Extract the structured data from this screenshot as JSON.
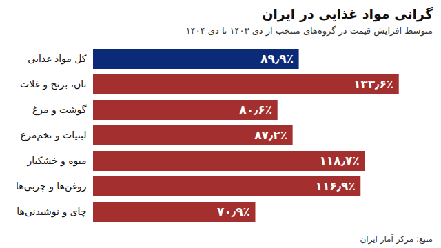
{
  "chart_data": {
    "type": "bar",
    "title": "گرانی مواد غذایی در ایران",
    "subtitle": "متوسط افزایش قیمت در گروه‌های منتخب از دی ۱۴۰۳ تا دی ۱۴۰۴",
    "source": "منبع: مرکز آمار ایران",
    "orientation": "horizontal",
    "categories": [
      "کل مواد غذایی",
      "نان، برنج و غلات",
      "گوشت و مرغ",
      "لبنیات و تخم‌مرغ",
      "میوه و خشکبار",
      "روغن‌ها و چربی‌ها",
      "چای و نوشیدنی‌ها"
    ],
    "values": [
      89.9,
      133.6,
      80.6,
      87.2,
      118.7,
      116.9,
      70.9
    ],
    "value_labels": [
      "۸۹٫۹٪",
      "۱۳۳٫۶٪",
      "۸۰٫۶٪",
      "۸۷٫۲٪",
      "۱۱۸٫۷٪",
      "۱۱۶٫۹٪",
      "۷۰٫۹٪"
    ],
    "colors": [
      "#0b2a78",
      "#a3302f",
      "#a3302f",
      "#a3302f",
      "#a3302f",
      "#a3302f",
      "#a3302f"
    ],
    "xlim": [
      0,
      140
    ],
    "data_labels": true,
    "tick_labels": "y",
    "grid": false
  }
}
